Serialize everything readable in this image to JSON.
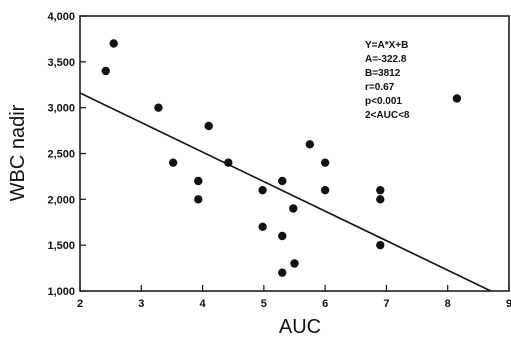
{
  "chart_data": {
    "type": "scatter",
    "title": "",
    "xlabel": "AUC",
    "ylabel": "WBC nadir",
    "xlim": [
      2,
      9
    ],
    "ylim": [
      1000,
      4000
    ],
    "x_ticks": [
      "2",
      "3",
      "4",
      "5",
      "6",
      "7",
      "8",
      "9"
    ],
    "y_ticks": [
      "1,000",
      "1,500",
      "2,000",
      "2,500",
      "3,000",
      "3,500",
      "4,000"
    ],
    "grid": false,
    "legend": "none",
    "series": [
      {
        "points": [
          {
            "x": 2.42,
            "y": 3400
          },
          {
            "x": 2.55,
            "y": 3700
          },
          {
            "x": 3.28,
            "y": 3000
          },
          {
            "x": 3.52,
            "y": 2400
          },
          {
            "x": 3.93,
            "y": 2200
          },
          {
            "x": 3.93,
            "y": 2000
          },
          {
            "x": 4.1,
            "y": 2800
          },
          {
            "x": 4.42,
            "y": 2400
          },
          {
            "x": 4.98,
            "y": 2100
          },
          {
            "x": 4.98,
            "y": 1700
          },
          {
            "x": 5.3,
            "y": 2200
          },
          {
            "x": 5.3,
            "y": 1600
          },
          {
            "x": 5.3,
            "y": 1200
          },
          {
            "x": 5.48,
            "y": 1900
          },
          {
            "x": 5.5,
            "y": 1300
          },
          {
            "x": 5.75,
            "y": 2600
          },
          {
            "x": 6.0,
            "y": 2400
          },
          {
            "x": 6.0,
            "y": 2100
          },
          {
            "x": 6.9,
            "y": 2100
          },
          {
            "x": 6.9,
            "y": 2000
          },
          {
            "x": 6.9,
            "y": 1500
          },
          {
            "x": 8.15,
            "y": 3100
          }
        ]
      }
    ],
    "regression_line": {
      "x1": 2.0,
      "y1": 3160,
      "x2": 8.75,
      "y2": 985
    },
    "annotations": [
      "Y=A*X+B",
      "A=-322.8",
      "B=3812",
      "r=0.67",
      "p<0.001",
      "2<AUC<8"
    ],
    "colors": {
      "ink": "#111111",
      "background": "#ffffff"
    }
  }
}
